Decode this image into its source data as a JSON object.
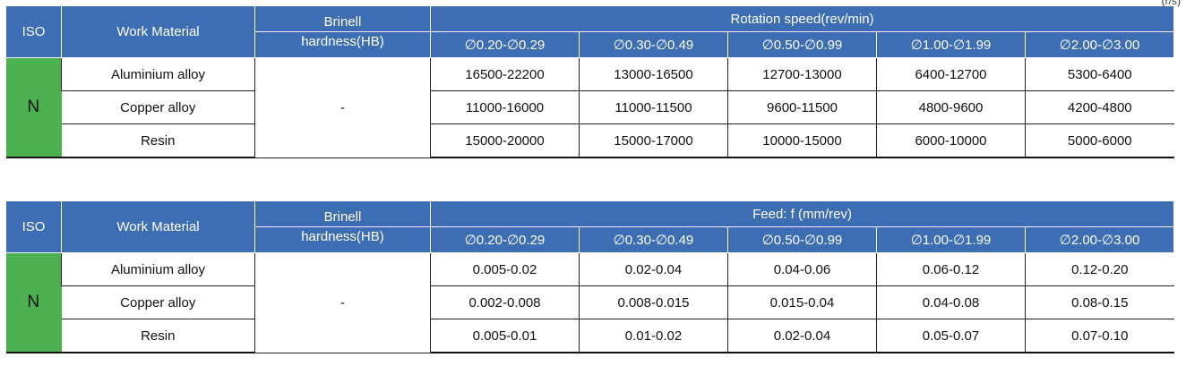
{
  "corner_unit": "(r/s)",
  "headers": {
    "iso": "ISO",
    "work_material": "Work Material",
    "brinell_line1": "Brinell",
    "brinell_line2": "hardness(HB)",
    "diameters": [
      "∅0.20-∅0.29",
      "∅0.30-∅0.49",
      "∅0.50-∅0.99",
      "∅1.00-∅1.99",
      "∅2.00-∅3.00"
    ]
  },
  "table_speed": {
    "group_header": "Rotation speed(rev/min)",
    "iso_group": "N",
    "hardness": "-",
    "rows": [
      {
        "material": "Aluminium alloy",
        "values": [
          "16500-22200",
          "13000-16500",
          "12700-13000",
          "6400-12700",
          "5300-6400"
        ]
      },
      {
        "material": "Copper alloy",
        "values": [
          "11000-16000",
          "11000-11500",
          "9600-11500",
          "4800-9600",
          "4200-4800"
        ]
      },
      {
        "material": "Resin",
        "values": [
          "15000-20000",
          "15000-17000",
          "10000-15000",
          "6000-10000",
          "5000-6000"
        ]
      }
    ]
  },
  "table_feed": {
    "group_header": "Feed:  f (mm/rev)",
    "iso_group": "N",
    "hardness": "-",
    "rows": [
      {
        "material": "Aluminium alloy",
        "values": [
          "0.005-0.02",
          "0.02-0.04",
          "0.04-0.06",
          "0.06-0.12",
          "0.12-0.20"
        ]
      },
      {
        "material": "Copper alloy",
        "values": [
          "0.002-0.008",
          "0.008-0.015",
          "0.015-0.04",
          "0.04-0.08",
          "0.08-0.15"
        ]
      },
      {
        "material": "Resin",
        "values": [
          "0.005-0.01",
          "0.01-0.02",
          "0.02-0.04",
          "0.05-0.07",
          "0.07-0.10"
        ]
      }
    ]
  },
  "colors": {
    "header_blue": "#3d6eb4",
    "iso_green": "#4caf50"
  }
}
